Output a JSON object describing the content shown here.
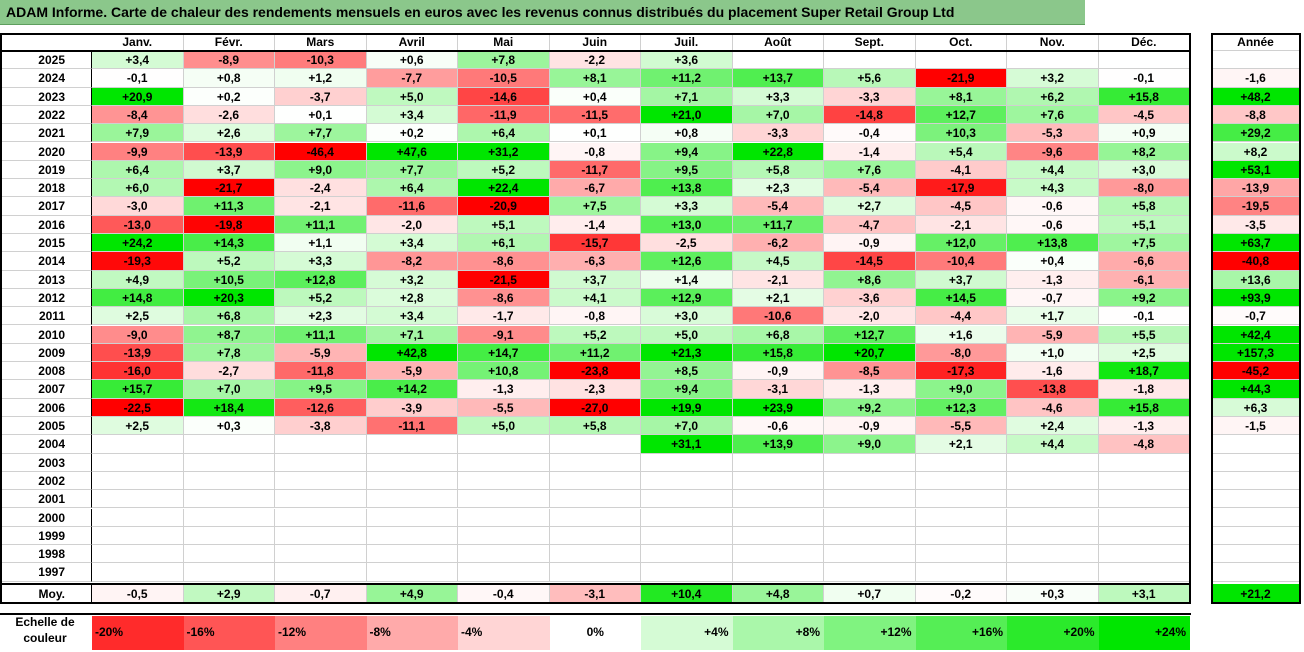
{
  "title": "ADAM Informe. Carte de chaleur des rendements mensuels en euros avec les revenus connus distribués du placement Super Retail Group Ltd",
  "chart_data": {
    "type": "heatmap",
    "columns": [
      "Janv.",
      "Févr.",
      "Mars",
      "Avril",
      "Mai",
      "Juin",
      "Juil.",
      "Août",
      "Sept.",
      "Oct.",
      "Nov.",
      "Déc."
    ],
    "year_column": "Année",
    "rows": [
      {
        "label": "2025",
        "values": [
          "+3,4",
          "-8,9",
          "-10,3",
          "+0,6",
          "+7,8",
          "-2,2",
          "+3,6",
          "",
          "",
          "",
          "",
          ""
        ],
        "year": ""
      },
      {
        "label": "2024",
        "values": [
          "-0,1",
          "+0,8",
          "+1,2",
          "-7,7",
          "-10,5",
          "+8,1",
          "+11,2",
          "+13,7",
          "+5,6",
          "-21,9",
          "+3,2",
          "-0,1"
        ],
        "year": "-1,6"
      },
      {
        "label": "2023",
        "values": [
          "+20,9",
          "+0,2",
          "-3,7",
          "+5,0",
          "-14,6",
          "+0,4",
          "+7,1",
          "+3,3",
          "-3,3",
          "+8,1",
          "+6,2",
          "+15,8"
        ],
        "year": "+48,2"
      },
      {
        "label": "2022",
        "values": [
          "-8,4",
          "-2,6",
          "+0,1",
          "+3,4",
          "-11,9",
          "-11,5",
          "+21,0",
          "+7,0",
          "-14,8",
          "+12,7",
          "+7,6",
          "-4,5"
        ],
        "year": "-8,8"
      },
      {
        "label": "2021",
        "values": [
          "+7,9",
          "+2,6",
          "+7,7",
          "+0,2",
          "+6,4",
          "+0,1",
          "+0,8",
          "-3,3",
          "-0,4",
          "+10,3",
          "-5,3",
          "+0,9"
        ],
        "year": "+29,2"
      },
      {
        "label": "2020",
        "values": [
          "-9,9",
          "-13,9",
          "-46,4",
          "+47,6",
          "+31,2",
          "-0,8",
          "+9,4",
          "+22,8",
          "-1,4",
          "+5,4",
          "-9,6",
          "+8,2"
        ],
        "year": "+8,2"
      },
      {
        "label": "2019",
        "values": [
          "+6,4",
          "+3,7",
          "+9,0",
          "+7,7",
          "+5,2",
          "-11,7",
          "+9,5",
          "+5,8",
          "+7,6",
          "-4,1",
          "+4,4",
          "+3,0"
        ],
        "year": "+53,1"
      },
      {
        "label": "2018",
        "values": [
          "+6,0",
          "-21,7",
          "-2,4",
          "+6,4",
          "+22,4",
          "-6,7",
          "+13,8",
          "+2,3",
          "-5,4",
          "-17,9",
          "+4,3",
          "-8,0"
        ],
        "year": "-13,9"
      },
      {
        "label": "2017",
        "values": [
          "-3,0",
          "+11,3",
          "-2,1",
          "-11,6",
          "-20,9",
          "+7,5",
          "+3,3",
          "-5,4",
          "+2,7",
          "-4,5",
          "-0,6",
          "+5,8"
        ],
        "year": "-19,5"
      },
      {
        "label": "2016",
        "values": [
          "-13,0",
          "-19,8",
          "+11,1",
          "-2,0",
          "+5,1",
          "-1,4",
          "+13,0",
          "+11,7",
          "-4,7",
          "-2,1",
          "-0,6",
          "+5,1"
        ],
        "year": "-3,5"
      },
      {
        "label": "2015",
        "values": [
          "+24,2",
          "+14,3",
          "+1,1",
          "+3,4",
          "+6,1",
          "-15,7",
          "-2,5",
          "-6,2",
          "-0,9",
          "+12,0",
          "+13,8",
          "+7,5"
        ],
        "year": "+63,7"
      },
      {
        "label": "2014",
        "values": [
          "-19,3",
          "+5,2",
          "+3,3",
          "-8,2",
          "-8,6",
          "-6,3",
          "+12,6",
          "+4,5",
          "-14,5",
          "-10,4",
          "+0,4",
          "-6,6"
        ],
        "year": "-40,8"
      },
      {
        "label": "2013",
        "values": [
          "+4,9",
          "+10,5",
          "+12,8",
          "+3,2",
          "-21,5",
          "+3,7",
          "+1,4",
          "-2,1",
          "+8,6",
          "+3,7",
          "-1,3",
          "-6,1"
        ],
        "year": "+13,6"
      },
      {
        "label": "2012",
        "values": [
          "+14,8",
          "+20,3",
          "+5,2",
          "+2,8",
          "-8,6",
          "+4,1",
          "+12,9",
          "+2,1",
          "-3,6",
          "+14,5",
          "-0,7",
          "+9,2"
        ],
        "year": "+93,9"
      },
      {
        "label": "2011",
        "values": [
          "+2,5",
          "+6,8",
          "+2,3",
          "+3,4",
          "-1,7",
          "-0,8",
          "+3,0",
          "-10,6",
          "-2,0",
          "-4,4",
          "+1,7",
          "-0,1"
        ],
        "year": "-0,7"
      },
      {
        "label": "2010",
        "values": [
          "-9,0",
          "+8,7",
          "+11,1",
          "+7,1",
          "-9,1",
          "+5,2",
          "+5,0",
          "+6,8",
          "+12,7",
          "+1,6",
          "-5,9",
          "+5,5"
        ],
        "year": "+42,4"
      },
      {
        "label": "2009",
        "values": [
          "-13,9",
          "+7,8",
          "-5,9",
          "+42,8",
          "+14,7",
          "+11,2",
          "+21,3",
          "+15,8",
          "+20,7",
          "-8,0",
          "+1,0",
          "+2,5"
        ],
        "year": "+157,3"
      },
      {
        "label": "2008",
        "values": [
          "-16,0",
          "-2,7",
          "-11,8",
          "-5,9",
          "+10,8",
          "-23,8",
          "+8,5",
          "-0,9",
          "-8,5",
          "-17,3",
          "-1,6",
          "+18,7"
        ],
        "year": "-45,2"
      },
      {
        "label": "2007",
        "values": [
          "+15,7",
          "+7,0",
          "+9,5",
          "+14,2",
          "-1,3",
          "-2,3",
          "+9,4",
          "-3,1",
          "-1,3",
          "+9,0",
          "-13,8",
          "-1,8"
        ],
        "year": "+44,3"
      },
      {
        "label": "2006",
        "values": [
          "-22,5",
          "+18,4",
          "-12,6",
          "-3,9",
          "-5,5",
          "-27,0",
          "+19,9",
          "+23,9",
          "+9,2",
          "+12,3",
          "-4,6",
          "+15,8"
        ],
        "year": "+6,3"
      },
      {
        "label": "2005",
        "values": [
          "+2,5",
          "+0,3",
          "-3,8",
          "-11,1",
          "+5,0",
          "+5,8",
          "+7,0",
          "-0,6",
          "-0,9",
          "-5,5",
          "+2,4",
          "-1,3"
        ],
        "year": "-1,5"
      },
      {
        "label": "2004",
        "values": [
          "",
          "",
          "",
          "",
          "",
          "",
          "+31,1",
          "+13,9",
          "+9,0",
          "+2,1",
          "+4,4",
          "-4,8"
        ],
        "year": ""
      },
      {
        "label": "2003",
        "values": [
          "",
          "",
          "",
          "",
          "",
          "",
          "",
          "",
          "",
          "",
          "",
          ""
        ],
        "year": ""
      },
      {
        "label": "2002",
        "values": [
          "",
          "",
          "",
          "",
          "",
          "",
          "",
          "",
          "",
          "",
          "",
          ""
        ],
        "year": ""
      },
      {
        "label": "2001",
        "values": [
          "",
          "",
          "",
          "",
          "",
          "",
          "",
          "",
          "",
          "",
          "",
          ""
        ],
        "year": ""
      },
      {
        "label": "2000",
        "values": [
          "",
          "",
          "",
          "",
          "",
          "",
          "",
          "",
          "",
          "",
          "",
          ""
        ],
        "year": ""
      },
      {
        "label": "1999",
        "values": [
          "",
          "",
          "",
          "",
          "",
          "",
          "",
          "",
          "",
          "",
          "",
          ""
        ],
        "year": ""
      },
      {
        "label": "1998",
        "values": [
          "",
          "",
          "",
          "",
          "",
          "",
          "",
          "",
          "",
          "",
          "",
          ""
        ],
        "year": ""
      },
      {
        "label": "1997",
        "values": [
          "",
          "",
          "",
          "",
          "",
          "",
          "",
          "",
          "",
          "",
          "",
          ""
        ],
        "year": ""
      }
    ],
    "average_row": {
      "label": "Moy.",
      "values": [
        "-0,5",
        "+2,9",
        "-0,7",
        "+4,9",
        "-0,4",
        "-3,1",
        "+10,4",
        "+4,8",
        "+0,7",
        "-0,2",
        "+0,3",
        "+3,1"
      ],
      "year": "+21,2"
    },
    "color_scale": {
      "label_line1": "Echelle de",
      "label_line2": "couleur",
      "steps": [
        {
          "label": "-20%",
          "value": -20
        },
        {
          "label": "-16%",
          "value": -16
        },
        {
          "label": "-12%",
          "value": -12
        },
        {
          "label": "-8%",
          "value": -8
        },
        {
          "label": "-4%",
          "value": -4
        },
        {
          "label": "0%",
          "value": 0
        },
        {
          "label": "+4%",
          "value": 4
        },
        {
          "label": "+8%",
          "value": 8
        },
        {
          "label": "+12%",
          "value": 12
        },
        {
          "label": "+16%",
          "value": 16
        },
        {
          "label": "+20%",
          "value": 20
        },
        {
          "label": "+24%",
          "value": 24
        }
      ]
    },
    "colors": {
      "negative_max": "#ff0000",
      "positive_max": "#00e000",
      "neutral": "#ffffff",
      "title_background": "#8bc78b"
    }
  }
}
